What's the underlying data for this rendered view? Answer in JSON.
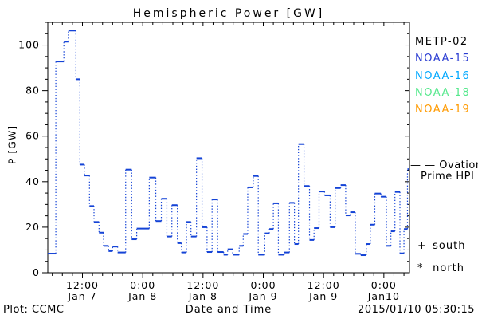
{
  "title": "Hemispheric Power [GW]",
  "axes": {
    "ylabel": "P [GW]",
    "xlabel": "Date and Time"
  },
  "footer": {
    "left": "Plot: CCMC",
    "timestamp": "2015/01/10 05:30:15"
  },
  "legend": {
    "satellites": [
      {
        "label": "METP-02",
        "color": "#000000"
      },
      {
        "label": "NOAA-15",
        "color": "#2a3cd2"
      },
      {
        "label": "NOAA-16",
        "color": "#00a8ff"
      },
      {
        "label": "NOAA-18",
        "color": "#55e88c"
      },
      {
        "label": "NOAA-19",
        "color": "#ff9a00"
      }
    ],
    "ovation": {
      "sample": "— —",
      "name_line1": "Ovation",
      "name_line2": "Prime HPI",
      "color": "#2233e0"
    },
    "south": {
      "symbol": "+",
      "label": "south"
    },
    "north": {
      "symbol": "*",
      "label": "north"
    }
  },
  "chart_data": {
    "type": "line",
    "title": "Hemispheric Power [GW]",
    "xlabel": "Date and Time",
    "ylabel": "P [GW]",
    "ylim": [
      0,
      110
    ],
    "y_major_ticks": [
      0,
      20,
      40,
      60,
      80,
      100
    ],
    "y_minor_step": 5,
    "x_hours_total": 72,
    "x_start_label": "2015/01/07 ~05:00",
    "x_minor_step_hours": 2,
    "x_minor_start": 0.9,
    "x_ticks": [
      {
        "h": 6.9,
        "time": "12:00",
        "date": "Jan 7"
      },
      {
        "h": 18.9,
        "time": "0:00",
        "date": "Jan 8"
      },
      {
        "h": 30.9,
        "time": "12:00",
        "date": "Jan 8"
      },
      {
        "h": 42.9,
        "time": "0:00",
        "date": "Jan 9"
      },
      {
        "h": 54.9,
        "time": "12:00",
        "date": "Jan 9"
      },
      {
        "h": 66.9,
        "time": "0:00",
        "date": "Jan10"
      }
    ],
    "grid": false,
    "legend_position": "right",
    "series": [
      {
        "name": "Ovation Prime HPI",
        "color": "#1443d6",
        "style": "step-dotted",
        "units": "GW",
        "segments_format": [
          "t0_hours",
          "t1_hours",
          "power_gw"
        ],
        "segments": [
          [
            0.0,
            1.6,
            8.4
          ],
          [
            1.6,
            3.2,
            92.8
          ],
          [
            3.2,
            4.1,
            101.5
          ],
          [
            4.1,
            5.6,
            106.4
          ],
          [
            5.6,
            6.4,
            85.0
          ],
          [
            6.4,
            7.3,
            47.5
          ],
          [
            7.3,
            8.3,
            42.7
          ],
          [
            8.3,
            9.2,
            29.3
          ],
          [
            9.2,
            10.2,
            22.3
          ],
          [
            10.2,
            11.1,
            17.6
          ],
          [
            11.1,
            12.1,
            11.8
          ],
          [
            12.1,
            12.9,
            9.5
          ],
          [
            12.9,
            13.9,
            11.5
          ],
          [
            13.9,
            15.5,
            8.9
          ],
          [
            15.5,
            16.7,
            45.3
          ],
          [
            16.7,
            17.7,
            14.7
          ],
          [
            17.7,
            20.2,
            19.4
          ],
          [
            20.2,
            21.5,
            41.8
          ],
          [
            21.5,
            22.6,
            22.7
          ],
          [
            22.6,
            23.7,
            32.5
          ],
          [
            23.7,
            24.7,
            15.9
          ],
          [
            24.7,
            25.8,
            29.7
          ],
          [
            25.8,
            26.6,
            13.0
          ],
          [
            26.6,
            27.6,
            8.9
          ],
          [
            27.6,
            28.5,
            22.3
          ],
          [
            28.5,
            29.6,
            15.9
          ],
          [
            29.6,
            30.7,
            50.3
          ],
          [
            30.7,
            31.7,
            20.0
          ],
          [
            31.7,
            32.7,
            9.1
          ],
          [
            32.7,
            33.8,
            32.2
          ],
          [
            33.8,
            35.0,
            9.1
          ],
          [
            35.0,
            35.8,
            7.9
          ],
          [
            35.8,
            36.8,
            10.3
          ],
          [
            36.8,
            38.1,
            7.9
          ],
          [
            38.1,
            38.9,
            11.8
          ],
          [
            38.9,
            39.8,
            17.0
          ],
          [
            39.8,
            40.9,
            37.5
          ],
          [
            40.9,
            41.9,
            42.5
          ],
          [
            41.9,
            43.2,
            7.9
          ],
          [
            43.2,
            44.1,
            17.3
          ],
          [
            44.1,
            44.9,
            19.2
          ],
          [
            44.9,
            45.9,
            30.5
          ],
          [
            45.9,
            47.1,
            7.9
          ],
          [
            47.1,
            48.1,
            8.9
          ],
          [
            48.1,
            49.1,
            30.7
          ],
          [
            49.1,
            49.9,
            12.6
          ],
          [
            49.9,
            51.0,
            56.5
          ],
          [
            51.0,
            52.1,
            38.1
          ],
          [
            52.1,
            53.0,
            14.4
          ],
          [
            53.0,
            54.0,
            19.6
          ],
          [
            54.0,
            55.1,
            35.7
          ],
          [
            55.1,
            56.2,
            34.0
          ],
          [
            56.2,
            57.2,
            20.0
          ],
          [
            57.2,
            58.3,
            37.2
          ],
          [
            58.3,
            59.3,
            38.5
          ],
          [
            59.3,
            60.2,
            25.2
          ],
          [
            60.2,
            61.2,
            26.6
          ],
          [
            61.2,
            62.3,
            8.3
          ],
          [
            62.3,
            63.4,
            7.7
          ],
          [
            63.4,
            64.2,
            12.6
          ],
          [
            64.2,
            65.1,
            21.1
          ],
          [
            65.1,
            66.3,
            34.8
          ],
          [
            66.3,
            67.4,
            33.4
          ],
          [
            67.4,
            68.3,
            11.8
          ],
          [
            68.3,
            69.1,
            18.2
          ],
          [
            69.1,
            70.1,
            35.5
          ],
          [
            70.1,
            70.9,
            8.5
          ],
          [
            70.9,
            71.6,
            19.2
          ],
          [
            71.6,
            72.0,
            45.5
          ]
        ]
      }
    ]
  }
}
